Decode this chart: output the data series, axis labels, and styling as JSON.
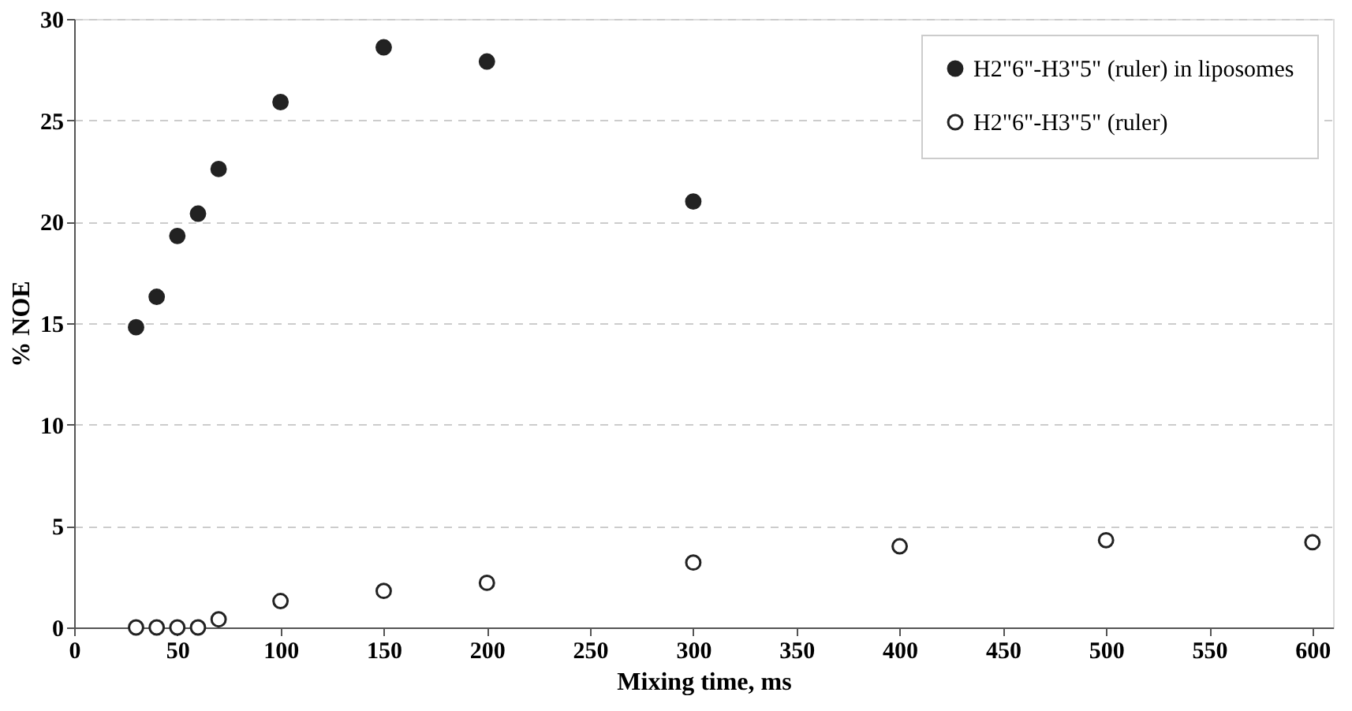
{
  "chart_data": {
    "type": "scatter",
    "xlabel": "Mixing time, ms",
    "ylabel": "% NOE",
    "xlim": [
      0,
      610
    ],
    "xticks": [
      0,
      50,
      100,
      150,
      200,
      250,
      300,
      350,
      400,
      450,
      500,
      550,
      600
    ],
    "ylim": [
      0,
      30
    ],
    "yticks": [
      0,
      5,
      10,
      15,
      20,
      25,
      30
    ],
    "grid": "y",
    "legend": "top right",
    "marker": "circle",
    "series": [
      {
        "name": "H2\"6\"-H3\"5\" (ruler) in liposomes",
        "color": "#222222",
        "x": [
          30,
          40,
          50,
          60,
          70,
          100,
          150,
          200,
          300
        ],
        "values": [
          14.8,
          16.3,
          19.3,
          20.4,
          22.6,
          25.9,
          28.6,
          27.9,
          21.0
        ]
      },
      {
        "name": "H2\"6\"-H3\"5\" (ruler)",
        "color": "#ffffff",
        "x": [
          30,
          40,
          50,
          60,
          70,
          100,
          150,
          200,
          300,
          400,
          500,
          600
        ],
        "values": [
          0,
          0,
          0,
          0,
          0.4,
          1.3,
          1.8,
          2.2,
          3.2,
          4.0,
          4.3,
          4.2
        ]
      }
    ]
  }
}
